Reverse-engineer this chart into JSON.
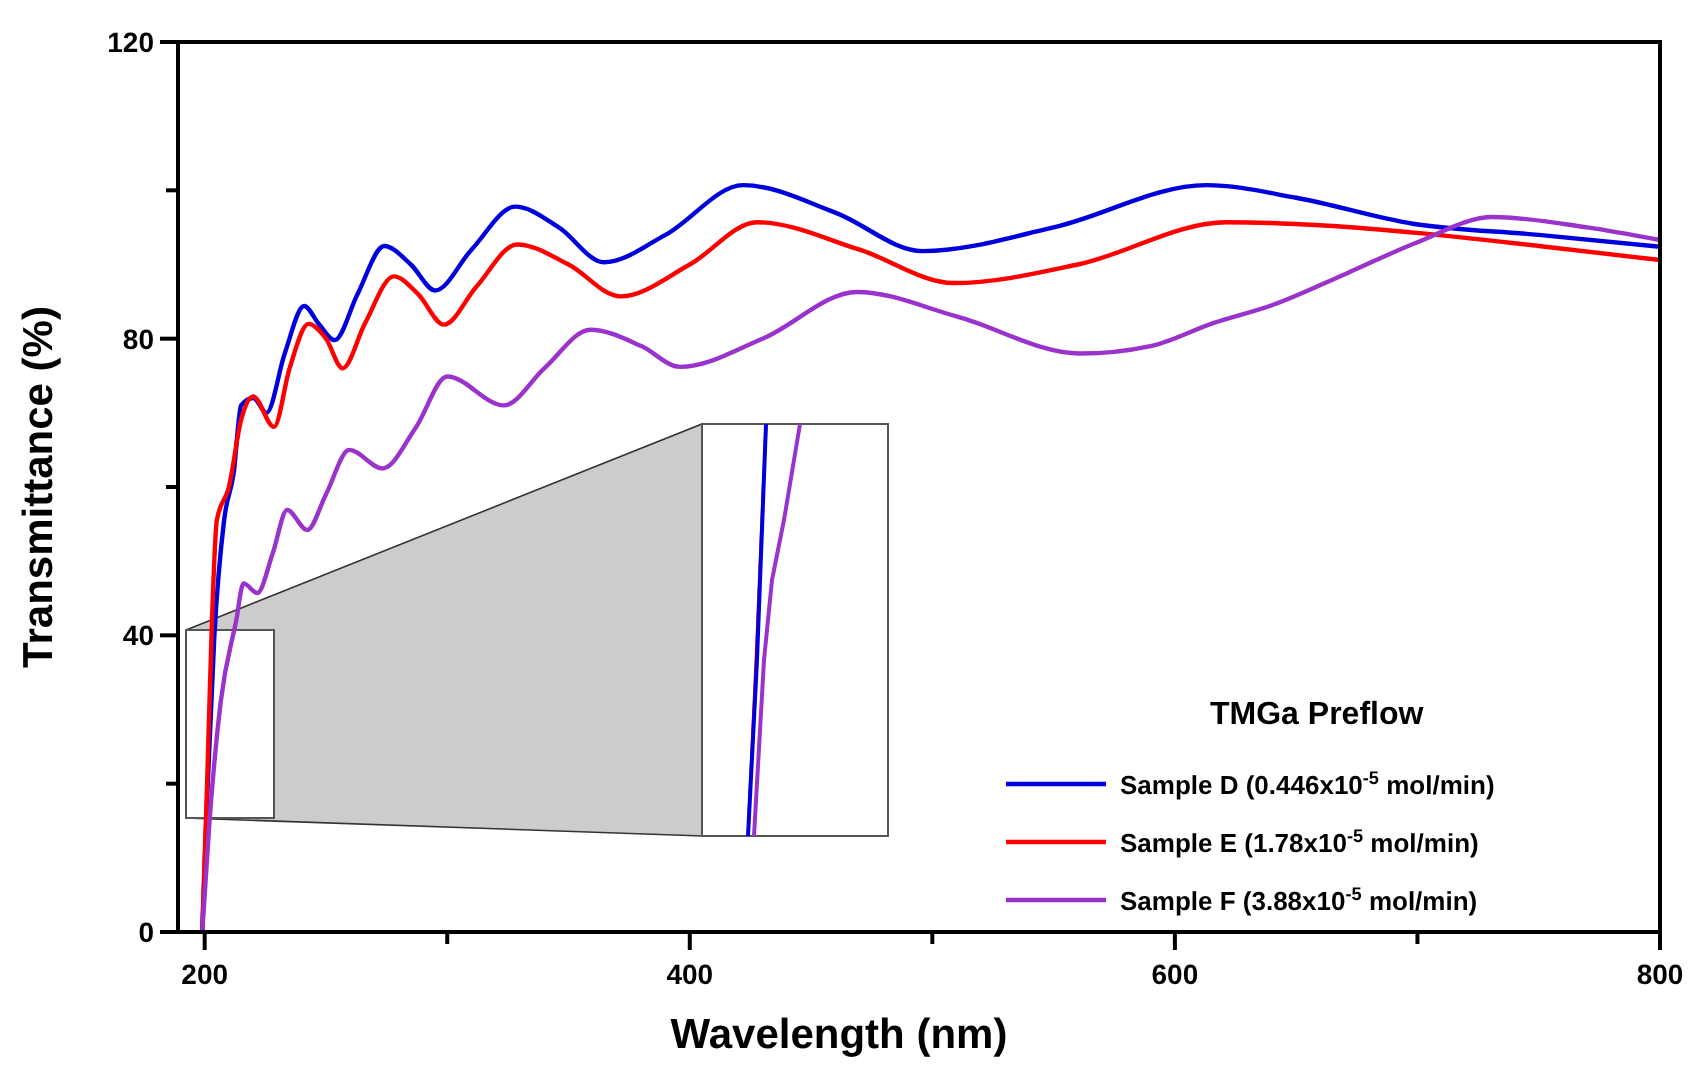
{
  "chart_data": {
    "type": "line",
    "xlabel": "Wavelength (nm)",
    "ylabel": "Transmittance (%)",
    "legend_title": "TMGa Preflow",
    "legend": "bottom right",
    "xlim": [
      189,
      800
    ],
    "xticks": [
      200,
      {
        "value": 300,
        "label": null
      },
      400,
      {
        "value": 500,
        "label": null
      },
      600,
      {
        "value": 700,
        "label": null
      },
      800
    ],
    "ylim": [
      0,
      120
    ],
    "yticks": [
      0,
      {
        "value": 20,
        "label": null
      },
      40,
      {
        "value": 60,
        "label": null
      },
      80,
      {
        "value": 100,
        "label": null
      },
      120
    ],
    "series": [
      {
        "name": "Sample D (0.446x10$^{-5}$ mol/min)",
        "color": "#0000dd",
        "x": [
          199,
          201,
          204,
          208,
          212,
          215,
          220,
          225.5,
          233,
          241,
          247,
          253.6,
          263,
          274,
          285,
          295,
          310,
          328,
          346,
          364.6,
          390,
          422,
          460,
          496,
          550,
          613,
          650,
          698,
          750,
          800
        ],
        "values": [
          0,
          18,
          40,
          55.5,
          62,
          71,
          72,
          70,
          78,
          84.4,
          82,
          79.8,
          86,
          92.5,
          90,
          86.5,
          92,
          97.8,
          95,
          90.3,
          94,
          100.7,
          97,
          91.8,
          95,
          100.7,
          99,
          95.5,
          94,
          92.4
        ]
      },
      {
        "name": "Sample E (1.78x10$^{-5}$ mol/min)",
        "color": "#ff0000",
        "x": [
          199,
          201,
          203,
          205,
          210,
          215,
          220,
          228.6,
          235,
          242.8,
          250,
          256.9,
          266,
          278,
          288,
          298.6,
          312,
          328.8,
          350,
          371.4,
          400,
          427.7,
          470,
          508.8,
          560,
          621.3,
          660,
          698.3,
          750,
          800
        ],
        "values": [
          0,
          20,
          42,
          55.5,
          60,
          69,
          72.2,
          68.1,
          76,
          82,
          80,
          76,
          82,
          88.4,
          86,
          81.9,
          87,
          92.7,
          90,
          85.7,
          90,
          95.7,
          92,
          87.5,
          90,
          95.7,
          95.3,
          94.3,
          92.5,
          90.6
        ]
      },
      {
        "name": "Sample F (3.88x10$^{-5}$ mol/min)",
        "color": "#9933cc",
        "x": [
          199,
          202,
          206.6,
          213,
          216,
          221.7,
          228,
          234,
          242.3,
          250,
          259.6,
          273.3,
          287,
          300,
          323.4,
          340,
          359,
          380,
          396,
          430,
          469,
          510,
          561,
          590,
          615.8,
          640,
          670.8,
          700,
          731,
          770,
          800
        ],
        "values": [
          0,
          15,
          31,
          42,
          47,
          45.7,
          51,
          56.9,
          54.2,
          59,
          65,
          62.5,
          68,
          74.9,
          71,
          76,
          81.2,
          79,
          76.2,
          80,
          86.3,
          83,
          78,
          79,
          82.1,
          84.5,
          88.8,
          93,
          96.4,
          95,
          93.3
        ]
      }
    ]
  }
}
